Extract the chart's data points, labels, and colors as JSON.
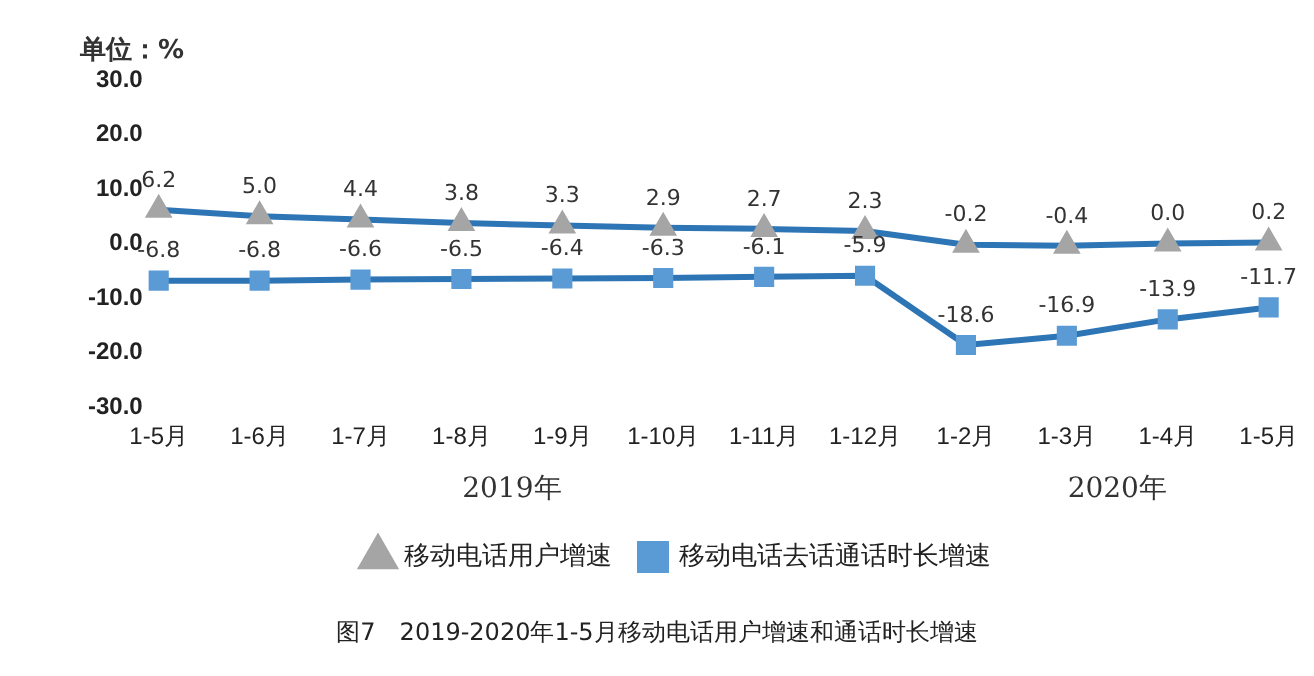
{
  "chart_data": {
    "type": "line",
    "title": "图7　2019-2020年1-5月移动电话用户增速和通话时长增速",
    "annotations": [
      "单位：%",
      "2019年",
      "2020年"
    ],
    "categories": [
      "1-5月",
      "1-6月",
      "1-7月",
      "1-8月",
      "1-9月",
      "1-10月",
      "1-11月",
      "1-12月",
      "1-2月",
      "1-3月",
      "1-4月",
      "1-5月"
    ],
    "series": [
      {
        "name": "移动电话用户增速",
        "color": "#2e75b6",
        "marker": "triangle",
        "values": [
          6.2,
          5.0,
          4.4,
          3.8,
          3.3,
          2.9,
          2.7,
          2.3,
          -0.2,
          -0.4,
          0.0,
          0.2
        ],
        "value_labels": [
          "6.2",
          "5.0",
          "4.4",
          "3.8",
          "3.3",
          "2.9",
          "2.7",
          "2.3",
          "-0.2",
          "-0.4",
          "0.0",
          "0.2"
        ]
      },
      {
        "name": "移动电话去话通话时长增速",
        "color": "#2e75b6",
        "marker": "square",
        "values": [
          -6.8,
          -6.8,
          -6.6,
          -6.5,
          -6.4,
          -6.3,
          -6.1,
          -5.9,
          -18.6,
          -16.9,
          -13.9,
          -11.7
        ],
        "value_labels": [
          "-6.8",
          "-6.8",
          "-6.6",
          "-6.5",
          "-6.4",
          "-6.3",
          "-6.1",
          "-5.9",
          "-18.6",
          "-16.9",
          "-13.9",
          "-11.7"
        ]
      }
    ],
    "ylim": [
      -30,
      30
    ],
    "yticks": [
      {
        "value": -30,
        "label": "-30.0"
      },
      {
        "value": -20,
        "label": "-20.0"
      },
      {
        "value": -10,
        "label": "-10.0"
      },
      {
        "value": 0,
        "label": "0.0"
      },
      {
        "value": 10,
        "label": "10.0"
      },
      {
        "value": 20,
        "label": "20.0"
      },
      {
        "value": 30,
        "label": "30.0"
      }
    ],
    "grid": false,
    "legend": "bottom",
    "line_style": "solid"
  }
}
